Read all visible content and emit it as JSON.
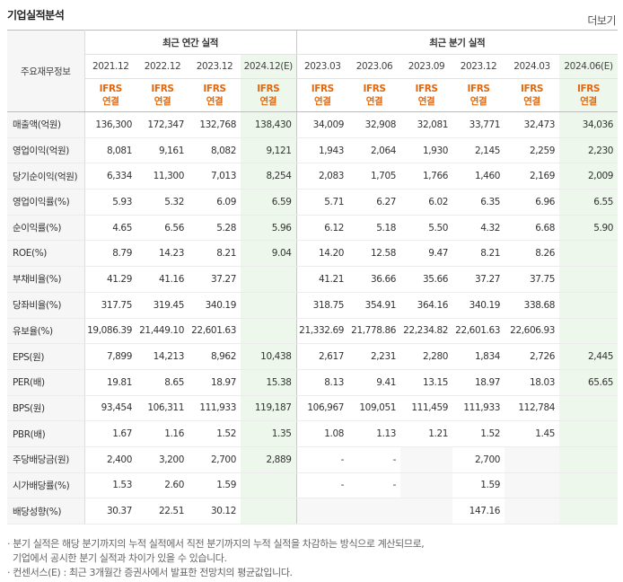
{
  "title": "기업실적분석",
  "more_label": "더보기",
  "header": {
    "row_label": "주요재무정보",
    "annual_group": "최근 연간 실적",
    "quarter_group": "최근 분기 실적",
    "annual_periods": [
      "2021.12",
      "2022.12",
      "2023.12",
      "2024.12(E)"
    ],
    "quarter_periods": [
      "2023.03",
      "2023.06",
      "2023.09",
      "2023.12",
      "2024.03",
      "2024.06(E)"
    ],
    "ifrs": "IFRS",
    "consolidated": "연결"
  },
  "rows": [
    {
      "label": "매출액(억원)",
      "annual": [
        "136,300",
        "172,347",
        "132,768",
        "138,430"
      ],
      "quarter": [
        "34,009",
        "32,908",
        "32,081",
        "33,771",
        "32,473",
        "34,036"
      ]
    },
    {
      "label": "영업이익(억원)",
      "annual": [
        "8,081",
        "9,161",
        "8,082",
        "9,121"
      ],
      "quarter": [
        "1,943",
        "2,064",
        "1,930",
        "2,145",
        "2,259",
        "2,230"
      ]
    },
    {
      "label": "당기순이익(억원)",
      "annual": [
        "6,334",
        "11,300",
        "7,013",
        "8,254"
      ],
      "quarter": [
        "2,083",
        "1,705",
        "1,766",
        "1,460",
        "2,169",
        "2,009"
      ]
    },
    {
      "label": "영업이익률(%)",
      "annual": [
        "5.93",
        "5.32",
        "6.09",
        "6.59"
      ],
      "quarter": [
        "5.71",
        "6.27",
        "6.02",
        "6.35",
        "6.96",
        "6.55"
      ]
    },
    {
      "label": "순이익률(%)",
      "annual": [
        "4.65",
        "6.56",
        "5.28",
        "5.96"
      ],
      "quarter": [
        "6.12",
        "5.18",
        "5.50",
        "4.32",
        "6.68",
        "5.90"
      ]
    },
    {
      "label": "ROE(%)",
      "annual": [
        "8.79",
        "14.23",
        "8.21",
        "9.04"
      ],
      "quarter": [
        "14.20",
        "12.58",
        "9.47",
        "8.21",
        "8.26",
        ""
      ]
    },
    {
      "label": "부채비율(%)",
      "annual": [
        "41.29",
        "41.16",
        "37.27",
        ""
      ],
      "quarter": [
        "41.21",
        "36.66",
        "35.66",
        "37.27",
        "37.75",
        ""
      ]
    },
    {
      "label": "당좌비율(%)",
      "annual": [
        "317.75",
        "319.45",
        "340.19",
        ""
      ],
      "quarter": [
        "318.75",
        "354.91",
        "364.16",
        "340.19",
        "338.68",
        ""
      ]
    },
    {
      "label": "유보율(%)",
      "annual": [
        "19,086.39",
        "21,449.10",
        "22,601.63",
        ""
      ],
      "quarter": [
        "21,332.69",
        "21,778.86",
        "22,234.82",
        "22,601.63",
        "22,606.93",
        ""
      ]
    },
    {
      "label": "EPS(원)",
      "annual": [
        "7,899",
        "14,213",
        "8,962",
        "10,438"
      ],
      "quarter": [
        "2,617",
        "2,231",
        "2,280",
        "1,834",
        "2,726",
        "2,445"
      ]
    },
    {
      "label": "PER(배)",
      "annual": [
        "19.81",
        "8.65",
        "18.97",
        "15.38"
      ],
      "quarter": [
        "8.13",
        "9.41",
        "13.15",
        "18.97",
        "18.03",
        "65.65"
      ]
    },
    {
      "label": "BPS(원)",
      "annual": [
        "93,454",
        "106,311",
        "111,933",
        "119,187"
      ],
      "quarter": [
        "106,967",
        "109,051",
        "111,459",
        "111,933",
        "112,784",
        ""
      ]
    },
    {
      "label": "PBR(배)",
      "annual": [
        "1.67",
        "1.16",
        "1.52",
        "1.35"
      ],
      "quarter": [
        "1.08",
        "1.13",
        "1.21",
        "1.52",
        "1.45",
        ""
      ]
    },
    {
      "label": "주당배당금(원)",
      "annual": [
        "2,400",
        "3,200",
        "2,700",
        "2,889"
      ],
      "quarter": [
        "-",
        "-",
        "",
        "2,700",
        "",
        ""
      ]
    },
    {
      "label": "시가배당률(%)",
      "annual": [
        "1.53",
        "2.60",
        "1.59",
        ""
      ],
      "quarter": [
        "-",
        "-",
        "",
        "1.59",
        "",
        ""
      ]
    },
    {
      "label": "배당성향(%)",
      "annual": [
        "30.37",
        "22.51",
        "30.12",
        ""
      ],
      "quarter": [
        "",
        "",
        "",
        "147.16",
        "",
        ""
      ]
    }
  ],
  "notes": [
    "· 분기 실적은 해당 분기까지의 누적 실적에서 직전 분기까지의 누적 실적을 차감하는 방식으로 계산되므로,",
    "  기업에서 공시한 분기 실적과 차이가 있을 수 있습니다.",
    "· 컨센서스(E) : 최근 3개월간 증권사에서 발표한 전망치의 평균값입니다."
  ]
}
